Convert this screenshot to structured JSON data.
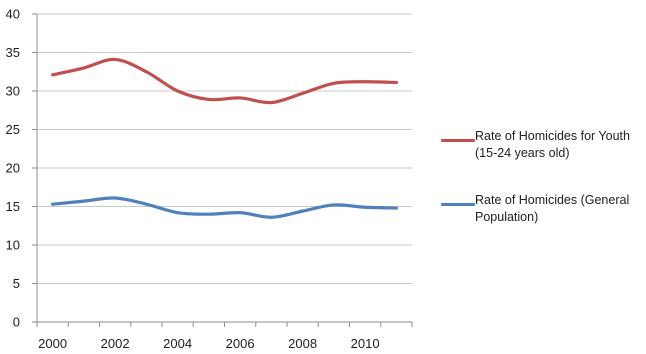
{
  "chart_data": {
    "type": "line",
    "x": [
      2000,
      2001,
      2002,
      2003,
      2004,
      2005,
      2006,
      2007,
      2008,
      2009,
      2010,
      2011
    ],
    "xticks": [
      "2000",
      "2002",
      "2004",
      "2006",
      "2008",
      "2010"
    ],
    "yticks": [
      "0",
      "5",
      "10",
      "15",
      "20",
      "25",
      "30",
      "35",
      "40"
    ],
    "ylim": [
      0,
      40
    ],
    "xlim": [
      1999.5,
      2011.5
    ],
    "grid": true,
    "legend_position": "right",
    "series": [
      {
        "name": "Rate of Homicides for Youth (15-24 years old)",
        "name_lines": [
          "Rate of Homicides for Youth",
          "(15-24 years old)"
        ],
        "color": "#c0504d",
        "values": [
          32.1,
          33.0,
          34.1,
          32.5,
          30.0,
          28.9,
          29.1,
          28.5,
          29.7,
          31.0,
          31.2,
          31.1
        ]
      },
      {
        "name": "Rate of Homicides (General Population)",
        "name_lines": [
          "Rate of Homicides (General",
          "Population)"
        ],
        "color": "#4f81bd",
        "values": [
          15.3,
          15.7,
          16.1,
          15.3,
          14.2,
          14.0,
          14.2,
          13.6,
          14.4,
          15.2,
          14.9,
          14.8
        ]
      }
    ]
  }
}
